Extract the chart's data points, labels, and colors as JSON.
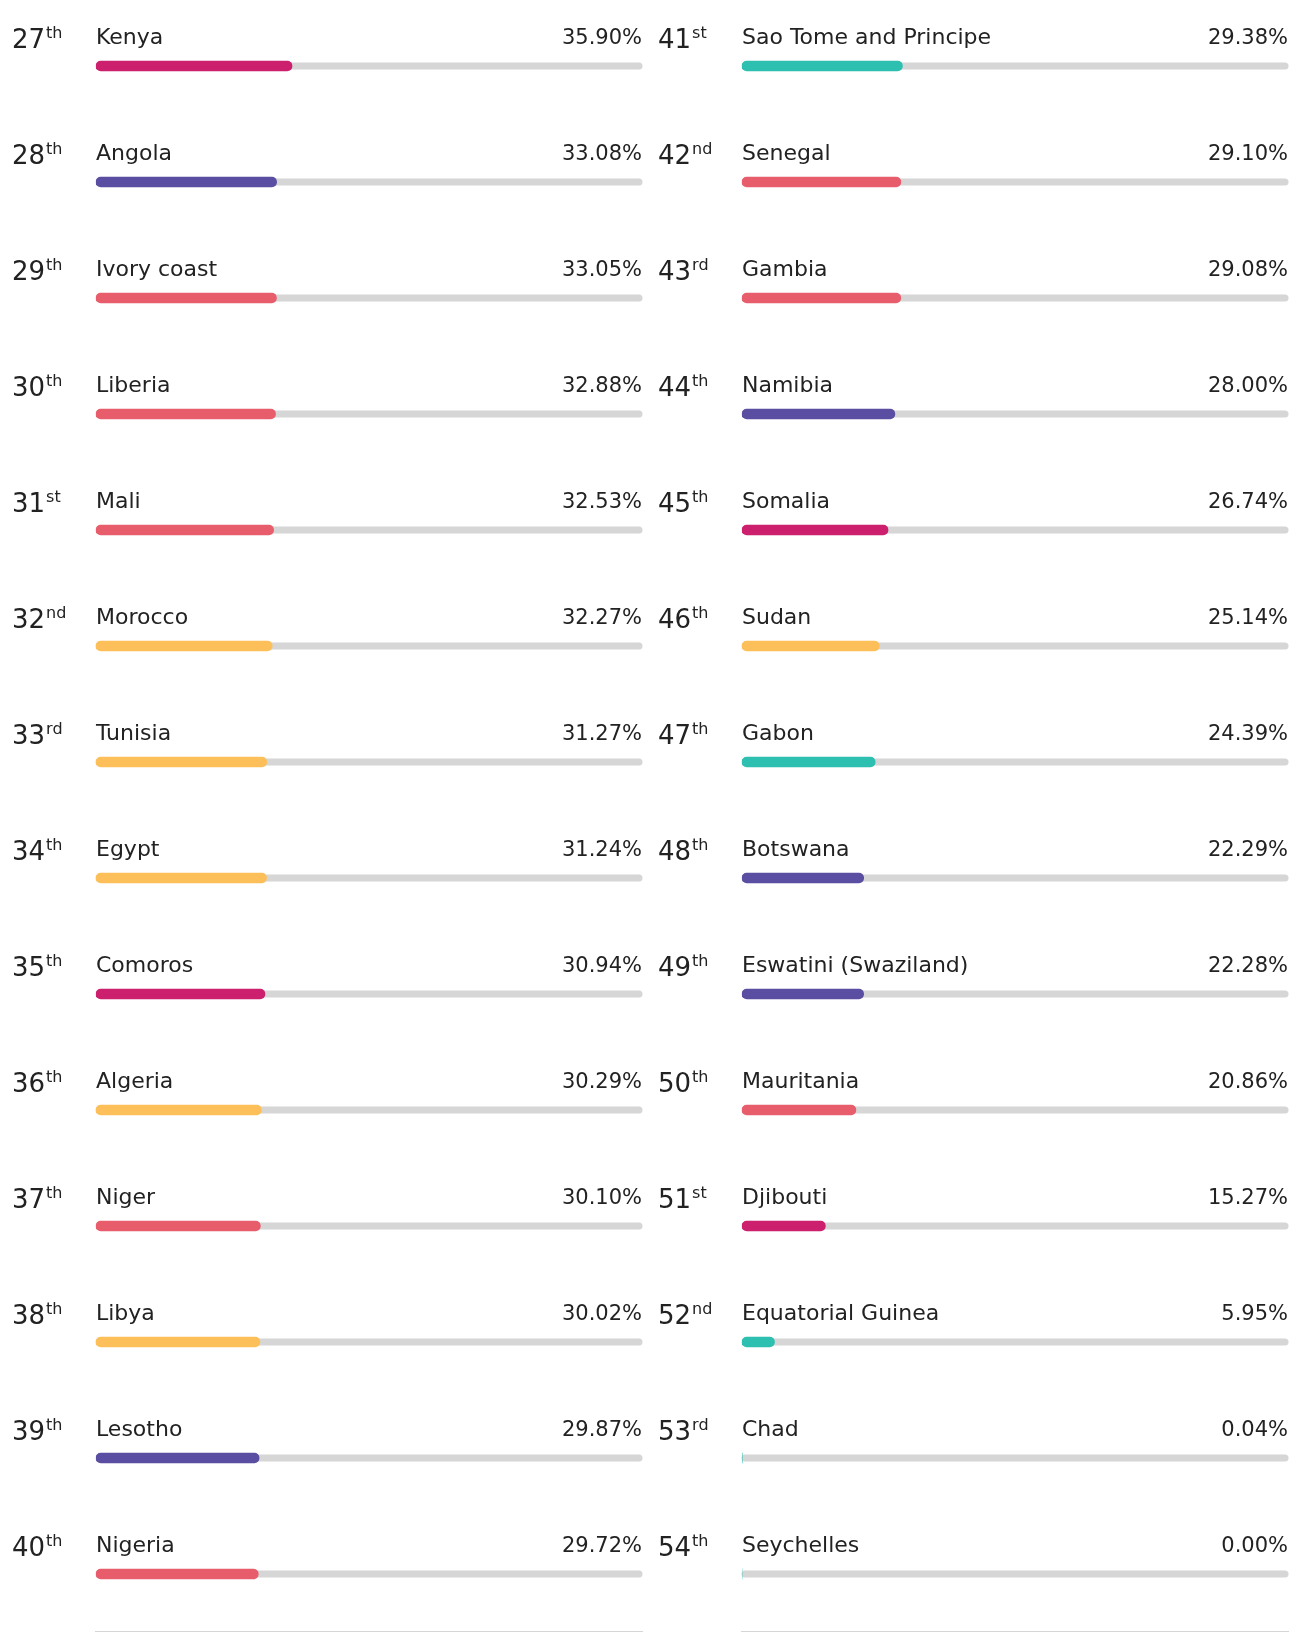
{
  "chart_data": [
    {
      "type": "bar",
      "orientation": "horizontal",
      "tick_labels": false,
      "legend": false,
      "grid": "y",
      "xlim": [
        0,
        100
      ],
      "categories": [
        "27$^{th}$ Kenya",
        "28$^{th}$ Angola",
        "29$^{th}$ Ivory coast",
        "30$^{th}$ Liberia",
        "31$^{st}$ Mali",
        "32$^{nd}$ Morocco",
        "33$^{rd}$ Tunisia",
        "34$^{th}$ Egypt",
        "35$^{th}$ Comoros",
        "36$^{th}$ Algeria",
        "37$^{th}$ Niger",
        "38$^{th}$ Libya",
        "39$^{th}$ Lesotho",
        "40$^{th}$ Nigeria"
      ],
      "values": [
        35.9,
        33.08,
        33.05,
        32.88,
        32.53,
        32.27,
        31.27,
        31.24,
        30.94,
        30.29,
        30.1,
        30.02,
        29.87,
        29.72
      ],
      "colors": [
        "#cc1f6e",
        "#5a4ea3",
        "#e85d6c",
        "#e85d6c",
        "#e85d6c",
        "#fdbf5a",
        "#fdbf5a",
        "#fdbf5a",
        "#cc1f6e",
        "#fdbf5a",
        "#e85d6c",
        "#fdbf5a",
        "#5a4ea3",
        "#e85d6c"
      ],
      "value_labels": [
        "35.90%",
        "33.08%",
        "33.05%",
        "32.88%",
        "32.53%",
        "32.27%",
        "31.27%",
        "31.24%",
        "30.94%",
        "30.29%",
        "30.10%",
        "30.02%",
        "29.87%",
        "29.72%"
      ]
    },
    {
      "type": "bar",
      "orientation": "horizontal",
      "tick_labels": false,
      "legend": false,
      "grid": "y",
      "xlim": [
        0,
        100
      ],
      "categories": [
        "41$^{st}$ Sao Tome and Principe",
        "42$^{nd}$ Senegal",
        "43$^{rd}$ Gambia",
        "44$^{th}$ Namibia",
        "45$^{th}$ Somalia",
        "46$^{th}$ Sudan",
        "47$^{th}$ Gabon",
        "48$^{th}$ Botswana",
        "49$^{th}$ Eswatini (Swaziland)",
        "50$^{th}$ Mauritania",
        "51$^{st}$ Djibouti",
        "52$^{nd}$ Equatorial Guinea",
        "53$^{rd}$ Chad",
        "54$^{th}$ Seychelles"
      ],
      "values": [
        29.38,
        29.1,
        29.08,
        28.0,
        26.74,
        25.14,
        24.39,
        22.29,
        22.28,
        20.86,
        15.27,
        5.95,
        0.04,
        0.0
      ],
      "colors": [
        "#2dbfb0",
        "#e85d6c",
        "#e85d6c",
        "#5a4ea3",
        "#cc1f6e",
        "#fdbf5a",
        "#2dbfb0",
        "#5a4ea3",
        "#5a4ea3",
        "#e85d6c",
        "#cc1f6e",
        "#2dbfb0",
        "#2dbfb0",
        "#2dbfb0"
      ],
      "value_labels": [
        "29.38%",
        "29.10%",
        "29.08%",
        "28.00%",
        "26.74%",
        "25.14%",
        "24.39%",
        "22.29%",
        "22.28%",
        "20.86%",
        "15.27%",
        "5.95%",
        "0.04%",
        "0.00%"
      ]
    }
  ]
}
